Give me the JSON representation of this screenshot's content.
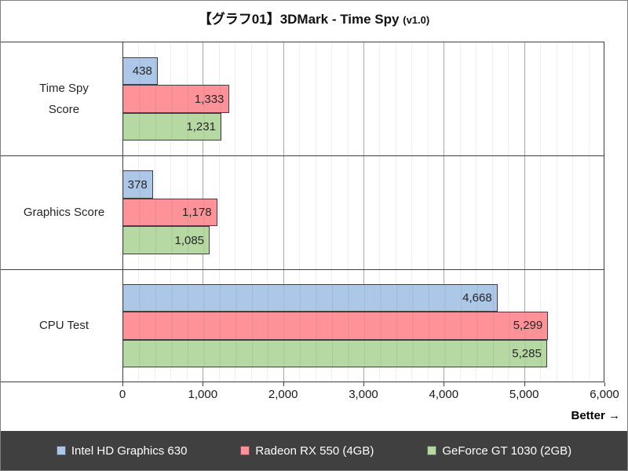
{
  "title": {
    "main": "【グラフ01】3DMark - Time Spy",
    "version": "(v1.0)"
  },
  "axis": {
    "better_label": "Better →"
  },
  "chart_data": {
    "type": "bar",
    "orientation": "horizontal",
    "title": "【グラフ01】3DMark - Time Spy (v1.0)",
    "categories": [
      "Time Spy\nScore",
      "Graphics Score",
      "CPU Test"
    ],
    "series": [
      {
        "name": "Intel HD Graphics 630",
        "color": "#ADC7E8",
        "values": [
          438,
          378,
          4668
        ]
      },
      {
        "name": "Radeon RX 550 (4GB)",
        "color": "#FF9199",
        "values": [
          1333,
          1178,
          5299
        ]
      },
      {
        "name": "GeForce GT 1030 (2GB)",
        "color": "#B6D8A3",
        "values": [
          1231,
          1085,
          5285
        ]
      }
    ],
    "xlim": [
      0,
      6000
    ],
    "major_unit": 1000,
    "minor_unit": 200,
    "x_tick_labels": [
      "0",
      "1,000",
      "2,000",
      "3,000",
      "4,000",
      "5,000",
      "6,000"
    ],
    "grid": "vertical",
    "value_labels": "inside-end",
    "legend_position": "bottom",
    "annotation": "Better →"
  },
  "colors": {
    "bar_border": "#404040",
    "plot_border": "#404040",
    "grid_major": "#A9A9A9",
    "grid_minor": "#EFEFEF",
    "legend_background": "#404040",
    "legend_text": "#FFFFFF",
    "value_text": "#262626"
  }
}
